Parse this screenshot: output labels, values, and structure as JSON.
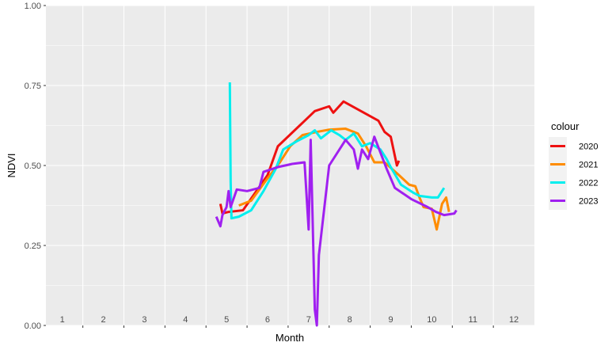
{
  "chart_data": {
    "type": "line",
    "xlabel": "Month",
    "ylabel": "NDVI",
    "xlim": [
      0.6,
      12.5
    ],
    "ylim": [
      0,
      1
    ],
    "yticks": [
      0.0,
      0.25,
      0.5,
      0.75,
      1.0
    ],
    "ytick_labels": [
      "0.00",
      "0.25",
      "0.50",
      "0.75",
      "1.00"
    ],
    "month_labels": [
      "1",
      "2",
      "3",
      "4",
      "5",
      "6",
      "7",
      "8",
      "9",
      "10",
      "11",
      "12"
    ],
    "grid": true,
    "legend": {
      "title": "colour",
      "placement": "right"
    },
    "series": [
      {
        "name": "2020",
        "color": "#ee1111",
        "points": [
          [
            4.85,
            0.38
          ],
          [
            4.9,
            0.35
          ],
          [
            5.05,
            0.355
          ],
          [
            5.4,
            0.36
          ],
          [
            6.0,
            0.47
          ],
          [
            6.25,
            0.56
          ],
          [
            7.15,
            0.67
          ],
          [
            7.5,
            0.685
          ],
          [
            7.6,
            0.665
          ],
          [
            7.85,
            0.7
          ],
          [
            8.7,
            0.64
          ],
          [
            8.85,
            0.605
          ],
          [
            9.0,
            0.59
          ],
          [
            9.15,
            0.5
          ],
          [
            9.2,
            0.515
          ]
        ]
      },
      {
        "name": "2021",
        "color": "#ff8c00",
        "points": [
          [
            5.3,
            0.375
          ],
          [
            5.6,
            0.39
          ],
          [
            6.0,
            0.46
          ],
          [
            6.3,
            0.51
          ],
          [
            6.55,
            0.56
          ],
          [
            6.85,
            0.595
          ],
          [
            7.2,
            0.605
          ],
          [
            7.5,
            0.612
          ],
          [
            7.9,
            0.615
          ],
          [
            8.2,
            0.6
          ],
          [
            8.4,
            0.56
          ],
          [
            8.6,
            0.51
          ],
          [
            8.85,
            0.51
          ],
          [
            9.2,
            0.47
          ],
          [
            9.45,
            0.44
          ],
          [
            9.6,
            0.435
          ],
          [
            9.7,
            0.4
          ],
          [
            9.8,
            0.37
          ],
          [
            10.0,
            0.365
          ],
          [
            10.12,
            0.3
          ],
          [
            10.25,
            0.38
          ],
          [
            10.35,
            0.4
          ],
          [
            10.42,
            0.355
          ]
        ]
      },
      {
        "name": "2022",
        "color": "#00eeee",
        "points": [
          [
            5.08,
            0.76
          ],
          [
            5.1,
            0.45
          ],
          [
            5.12,
            0.335
          ],
          [
            5.3,
            0.34
          ],
          [
            5.6,
            0.36
          ],
          [
            5.9,
            0.42
          ],
          [
            6.2,
            0.49
          ],
          [
            6.38,
            0.55
          ],
          [
            6.7,
            0.575
          ],
          [
            7.0,
            0.595
          ],
          [
            7.15,
            0.61
          ],
          [
            7.3,
            0.585
          ],
          [
            7.55,
            0.61
          ],
          [
            7.75,
            0.595
          ],
          [
            7.9,
            0.58
          ],
          [
            8.1,
            0.6
          ],
          [
            8.3,
            0.56
          ],
          [
            8.5,
            0.57
          ],
          [
            8.75,
            0.55
          ],
          [
            8.9,
            0.52
          ],
          [
            9.0,
            0.495
          ],
          [
            9.25,
            0.44
          ],
          [
            9.55,
            0.415
          ],
          [
            9.7,
            0.405
          ],
          [
            10.0,
            0.4
          ],
          [
            10.15,
            0.4
          ],
          [
            10.3,
            0.43
          ]
        ]
      },
      {
        "name": "2023",
        "color": "#a020f0",
        "points": [
          [
            4.75,
            0.34
          ],
          [
            4.85,
            0.31
          ],
          [
            4.9,
            0.345
          ],
          [
            5.0,
            0.37
          ],
          [
            5.05,
            0.42
          ],
          [
            5.1,
            0.37
          ],
          [
            5.25,
            0.425
          ],
          [
            5.5,
            0.42
          ],
          [
            5.8,
            0.43
          ],
          [
            5.9,
            0.48
          ],
          [
            6.25,
            0.495
          ],
          [
            6.6,
            0.505
          ],
          [
            6.9,
            0.51
          ],
          [
            7.0,
            0.3
          ],
          [
            7.05,
            0.58
          ],
          [
            7.15,
            0.05
          ],
          [
            7.2,
            0.0
          ],
          [
            7.25,
            0.22
          ],
          [
            7.5,
            0.5
          ],
          [
            7.9,
            0.58
          ],
          [
            8.1,
            0.55
          ],
          [
            8.2,
            0.49
          ],
          [
            8.3,
            0.55
          ],
          [
            8.45,
            0.52
          ],
          [
            8.6,
            0.59
          ],
          [
            8.9,
            0.49
          ],
          [
            9.1,
            0.43
          ],
          [
            9.5,
            0.395
          ],
          [
            9.9,
            0.37
          ],
          [
            10.1,
            0.355
          ],
          [
            10.3,
            0.345
          ],
          [
            10.55,
            0.35
          ],
          [
            10.6,
            0.36
          ]
        ]
      }
    ]
  }
}
